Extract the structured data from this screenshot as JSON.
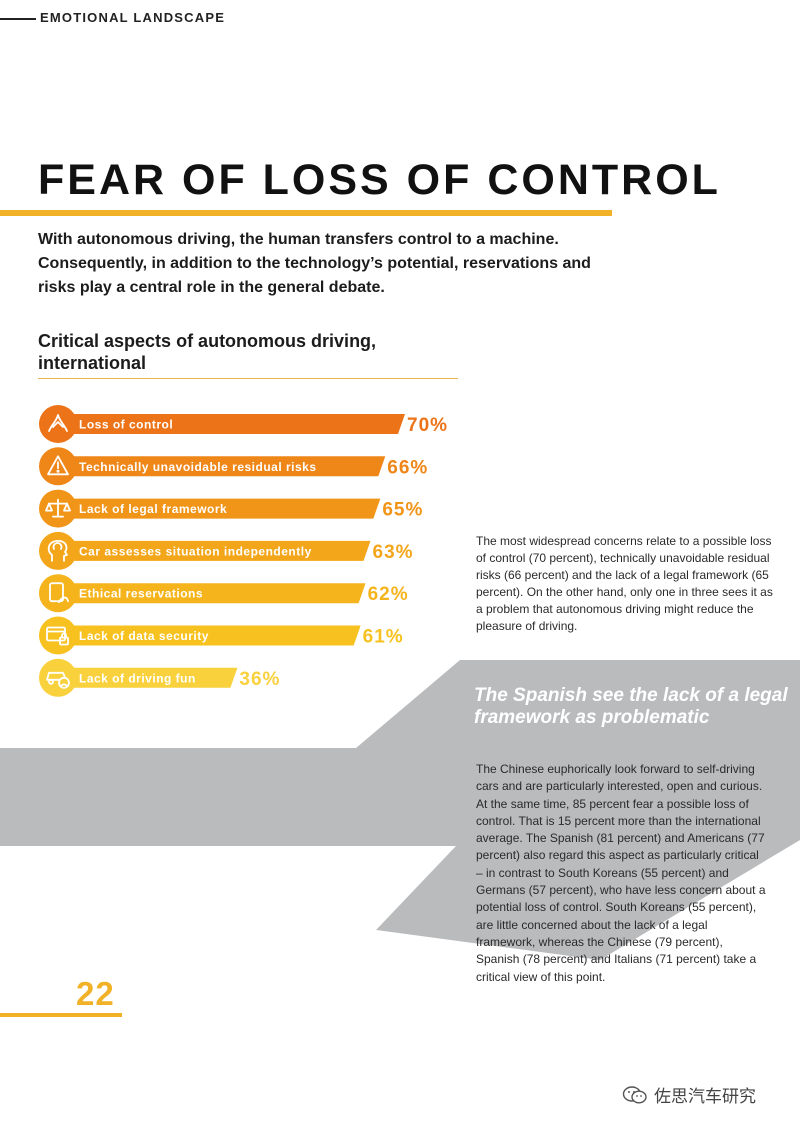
{
  "header": {
    "section_label": "EMOTIONAL LANDSCAPE"
  },
  "title": "FEAR OF LOSS OF CONTROL",
  "intro": "With autonomous driving, the human transfers control to a machine. Consequently, in addition to the technology’s potential, reservations and risks play a central role in the general debate.",
  "chart_heading": "Critical aspects of autonomous driving, international",
  "chart_data": {
    "type": "bar",
    "orientation": "horizontal",
    "categories": [
      "Loss of control",
      "Technically unavoidable residual risks",
      "Lack of legal framework",
      "Car assesses situation independently",
      "Ethical reservations",
      "Lack of data security",
      "Lack of driving fun"
    ],
    "values": [
      70,
      66,
      65,
      63,
      62,
      61,
      36
    ],
    "value_labels": [
      "70%",
      "66%",
      "65%",
      "63%",
      "62%",
      "61%",
      "36%"
    ],
    "icons": [
      "steering-hands-icon",
      "warning-icon",
      "scales-icon",
      "head-icon",
      "tablet-hand-icon",
      "lock-screen-icon",
      "sad-car-icon"
    ],
    "colors": [
      "#ec7318",
      "#ef8618",
      "#f19518",
      "#f3a61a",
      "#f5b41c",
      "#f7c21f",
      "#f9d13c"
    ]
  },
  "intro_note": "The most widespread concerns relate to a possible loss of control (70 percent), technically unavoidable residual risks (66 percent) and the lack of a legal framework (65 percent). On the other hand, only one in three sees it as a problem that autonomous driving might reduce the pleasure of driving.",
  "pull_quote": "The Spanish see the lack of a legal framework as problematic",
  "body_text": "The Chinese euphorically look forward to self-driving cars and are particularly interested, open and curious. At the same time, 85 percent fear a possible loss of control. That is 15 percent more than the international average. The Spanish (81 percent) and Americans (77 percent) also regard this aspect as particularly critical – in contrast to South Koreans (55 percent) and Germans (57 percent), who have less concern about a potential loss of control. South Koreans (55 percent), are little concerned about the lack of a legal framework, whereas the Chinese (79 percent), Spanish (78 percent) and Italians (71 percent) take a critical view of this point.",
  "page_number": "22",
  "watermark": "佐思汽车研究",
  "colors": {
    "accent": "#f2b227",
    "gray_band": "#b9bbbd"
  }
}
